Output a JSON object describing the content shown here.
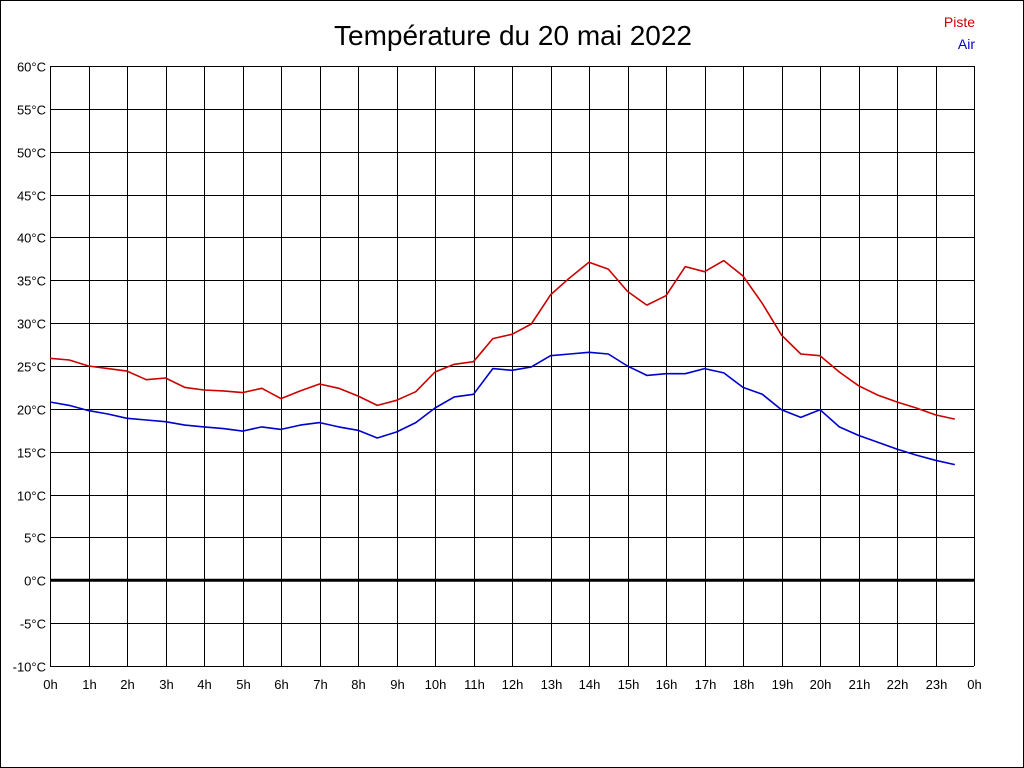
{
  "chart_data": {
    "type": "line",
    "title": "Température du 20 mai 2022",
    "x_tick_labels": [
      "0h",
      "1h",
      "2h",
      "3h",
      "4h",
      "5h",
      "6h",
      "7h",
      "8h",
      "9h",
      "10h",
      "11h",
      "12h",
      "13h",
      "14h",
      "15h",
      "16h",
      "17h",
      "18h",
      "19h",
      "20h",
      "21h",
      "22h",
      "23h",
      "0h"
    ],
    "y_tick_labels": [
      "60°C",
      "55°C",
      "50°C",
      "45°C",
      "40°C",
      "35°C",
      "30°C",
      "25°C",
      "20°C",
      "15°C",
      "10°C",
      "5°C",
      "0°C",
      "-5°C",
      "-10°C"
    ],
    "xlim": [
      0,
      24
    ],
    "ylim": [
      -10,
      60
    ],
    "grid": true,
    "legend_position": "top-right",
    "reference_line_y": 0,
    "x": [
      0,
      0.5,
      1,
      1.5,
      2,
      2.5,
      3,
      3.5,
      4,
      4.5,
      5,
      5.5,
      6,
      6.5,
      7,
      7.5,
      8,
      8.5,
      9,
      9.5,
      10,
      10.5,
      11,
      11.5,
      12,
      12.5,
      13,
      13.5,
      14,
      14.5,
      15,
      15.5,
      16,
      16.5,
      17,
      17.5,
      18,
      18.5,
      19,
      19.5,
      20,
      20.5,
      21,
      21.5,
      22,
      22.5,
      23,
      23.5
    ],
    "series": [
      {
        "name": "Piste",
        "color": "#cc0000",
        "values": [
          25.9,
          25.7,
          25.0,
          24.7,
          24.4,
          23.4,
          23.6,
          22.5,
          22.2,
          22.1,
          21.9,
          22.4,
          21.2,
          22.1,
          22.9,
          22.4,
          21.5,
          20.4,
          21.0,
          22.0,
          24.3,
          25.2,
          25.5,
          28.2,
          28.7,
          29.9,
          33.3,
          35.3,
          37.1,
          36.3,
          33.7,
          32.1,
          33.2,
          36.6,
          36.0,
          37.3,
          35.5,
          32.3,
          28.6,
          26.4,
          26.2,
          24.3,
          22.7,
          21.6,
          20.8,
          20.1,
          19.3,
          18.8
        ]
      },
      {
        "name": "Air",
        "color": "#0000cc",
        "values": [
          20.8,
          20.4,
          19.8,
          19.4,
          18.9,
          18.7,
          18.5,
          18.1,
          17.9,
          17.7,
          17.4,
          17.9,
          17.6,
          18.1,
          18.4,
          17.9,
          17.5,
          16.6,
          17.3,
          18.4,
          20.1,
          21.4,
          21.7,
          24.7,
          24.5,
          24.9,
          26.2,
          26.4,
          26.6,
          26.4,
          25.0,
          23.9,
          24.1,
          24.1,
          24.7,
          24.2,
          22.5,
          21.7,
          19.9,
          19.0,
          19.9,
          17.9,
          16.9,
          16.1,
          15.3,
          14.6,
          14.0,
          13.5
        ]
      }
    ]
  }
}
